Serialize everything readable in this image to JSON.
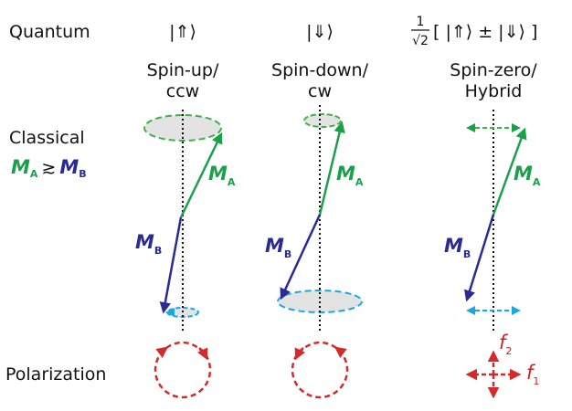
{
  "rows": {
    "quantum": "Quantum",
    "classical": "Classical",
    "polarization": "Polarization"
  },
  "columns": [
    {
      "ket": "|⇑⟩",
      "mode": [
        "Spin-up/",
        "ccw"
      ]
    },
    {
      "ket": "|⇓⟩",
      "mode": [
        "Spin-down/",
        "cw"
      ]
    },
    {
      "ket": {
        "numerator": "1",
        "denominator": "√2",
        "expression": "[ |⇑⟩ ± |⇓⟩ ]"
      },
      "mode": [
        "Spin-zero/",
        "Hybrid"
      ]
    }
  ],
  "classical_relation": {
    "left": "M",
    "left_sub": "A",
    "symbol": "≳",
    "right": "M",
    "right_sub": "B"
  },
  "vector_labels": {
    "a": {
      "symbol": "M",
      "sub": "A"
    },
    "b": {
      "symbol": "M",
      "sub": "B"
    }
  },
  "polarization_labels": {
    "f2": {
      "symbol": "f",
      "sub": "2"
    },
    "f1": {
      "symbol": "f",
      "sub": "1"
    }
  }
}
